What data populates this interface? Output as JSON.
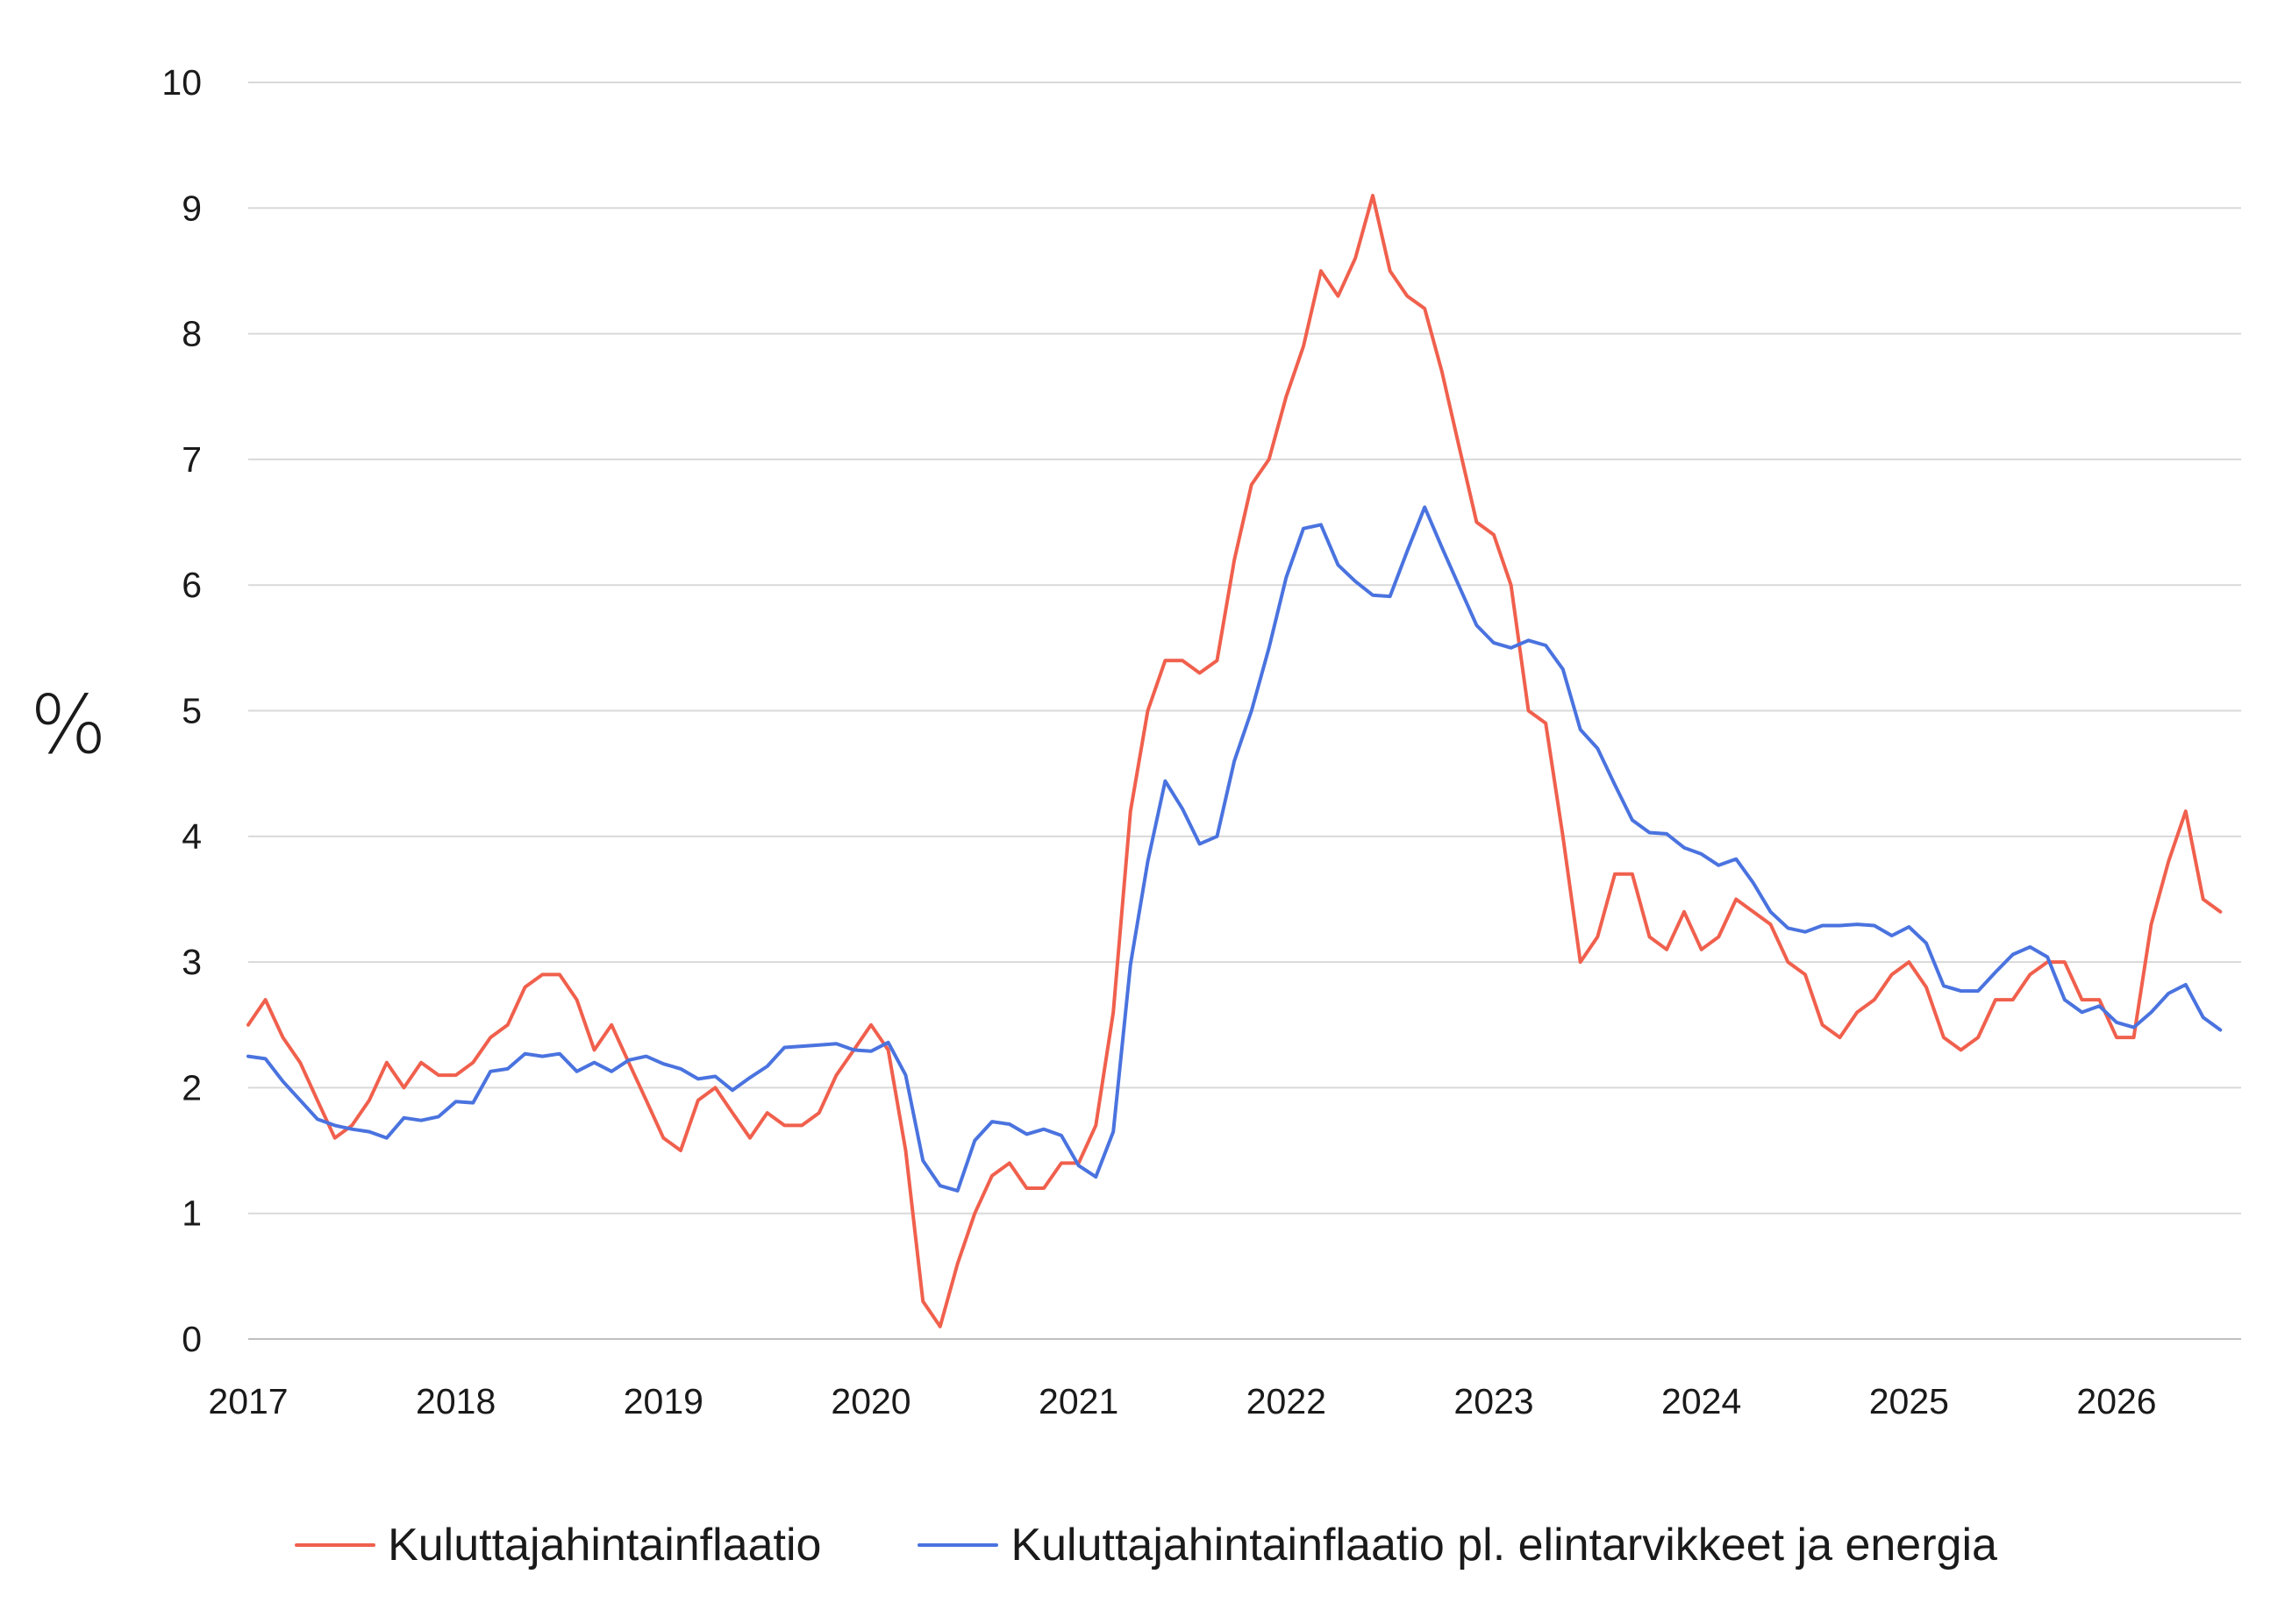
{
  "chart_data": {
    "type": "line",
    "title": "",
    "xlabel": "",
    "ylabel": "%",
    "ylim": [
      0,
      10
    ],
    "yticks": [
      "0",
      "1",
      "2",
      "3",
      "4",
      "5",
      "6",
      "7",
      "8",
      "9",
      "10"
    ],
    "xlim": [
      2017,
      2026.6
    ],
    "xticks": [
      "2017",
      "2018",
      "2019",
      "2020",
      "2021",
      "2022",
      "2023",
      "2024",
      "2025",
      "2026"
    ],
    "grid": "horizontal",
    "legend_position": "bottom",
    "series": [
      {
        "name": "Kuluttajahintainflaatio",
        "color": "#f0604d",
        "x": [
          2017.0,
          2017.083,
          2017.167,
          2017.25,
          2017.333,
          2017.417,
          2017.5,
          2017.583,
          2017.667,
          2017.75,
          2017.833,
          2017.917,
          2018.0,
          2018.083,
          2018.167,
          2018.25,
          2018.333,
          2018.417,
          2018.5,
          2018.583,
          2018.667,
          2018.75,
          2018.833,
          2018.917,
          2019.0,
          2019.083,
          2019.167,
          2019.25,
          2019.333,
          2019.417,
          2019.5,
          2019.583,
          2019.667,
          2019.75,
          2019.833,
          2019.917,
          2020.0,
          2020.083,
          2020.167,
          2020.25,
          2020.333,
          2020.417,
          2020.5,
          2020.583,
          2020.667,
          2020.75,
          2020.833,
          2020.917,
          2021.0,
          2021.083,
          2021.167,
          2021.25,
          2021.333,
          2021.417,
          2021.5,
          2021.583,
          2021.667,
          2021.75,
          2021.833,
          2021.917,
          2022.0,
          2022.083,
          2022.167,
          2022.25,
          2022.333,
          2022.417,
          2022.5,
          2022.583,
          2022.667,
          2022.75,
          2022.833,
          2022.917,
          2023.0,
          2023.083,
          2023.167,
          2023.25,
          2023.333,
          2023.417,
          2023.5,
          2023.583,
          2023.667,
          2023.75,
          2023.833,
          2023.917,
          2024.0,
          2024.083,
          2024.167,
          2024.25,
          2024.333,
          2024.417,
          2024.5,
          2024.583,
          2024.667,
          2024.75,
          2024.833,
          2024.917,
          2025.0,
          2025.083,
          2025.167,
          2025.25,
          2025.333,
          2025.417,
          2025.5,
          2025.583,
          2025.667,
          2025.75,
          2025.833,
          2025.917,
          2026.0,
          2026.083,
          2026.167,
          2026.25,
          2026.333,
          2026.417,
          2026.5
        ],
        "y": [
          2.5,
          2.7,
          2.4,
          2.2,
          1.9,
          1.6,
          1.7,
          1.9,
          2.2,
          2.0,
          2.2,
          2.1,
          2.1,
          2.2,
          2.4,
          2.5,
          2.8,
          2.9,
          2.9,
          2.7,
          2.3,
          2.5,
          2.2,
          1.9,
          1.6,
          1.5,
          1.9,
          2.0,
          1.8,
          1.6,
          1.8,
          1.7,
          1.7,
          1.8,
          2.1,
          2.3,
          2.5,
          2.3,
          1.5,
          0.3,
          0.1,
          0.6,
          1.0,
          1.3,
          1.4,
          1.2,
          1.2,
          1.4,
          1.4,
          1.7,
          2.6,
          4.2,
          5.0,
          5.4,
          5.4,
          5.3,
          5.4,
          6.2,
          6.8,
          7.0,
          7.5,
          7.9,
          8.5,
          8.3,
          8.6,
          9.1,
          8.5,
          8.3,
          8.2,
          7.7,
          7.1,
          6.5,
          6.4,
          6.0,
          5.0,
          4.9,
          4.0,
          3.0,
          3.2,
          3.7,
          3.7,
          3.2,
          3.1,
          3.4,
          3.1,
          3.2,
          3.5,
          3.4,
          3.3,
          3.0,
          2.9,
          2.5,
          2.4,
          2.6,
          2.7,
          2.9,
          3.0,
          2.8,
          2.4,
          2.3,
          2.4,
          2.7,
          2.7,
          2.9,
          3.0,
          3.0,
          2.7,
          2.7,
          2.4,
          2.4,
          3.3,
          3.8,
          4.2,
          3.5,
          3.4
        ]
      },
      {
        "name": "Kuluttajahintainflaatio pl. elintarvikkeet ja energia",
        "color": "#4a73df",
        "x": [
          2017.0,
          2017.083,
          2017.167,
          2017.25,
          2017.333,
          2017.417,
          2017.5,
          2017.583,
          2017.667,
          2017.75,
          2017.833,
          2017.917,
          2018.0,
          2018.083,
          2018.167,
          2018.25,
          2018.333,
          2018.417,
          2018.5,
          2018.583,
          2018.667,
          2018.75,
          2018.833,
          2018.917,
          2019.0,
          2019.083,
          2019.167,
          2019.25,
          2019.333,
          2019.417,
          2019.5,
          2019.583,
          2019.667,
          2019.75,
          2019.833,
          2019.917,
          2020.0,
          2020.083,
          2020.167,
          2020.25,
          2020.333,
          2020.417,
          2020.5,
          2020.583,
          2020.667,
          2020.75,
          2020.833,
          2020.917,
          2021.0,
          2021.083,
          2021.167,
          2021.25,
          2021.333,
          2021.417,
          2021.5,
          2021.583,
          2021.667,
          2021.75,
          2021.833,
          2021.917,
          2022.0,
          2022.083,
          2022.167,
          2022.25,
          2022.333,
          2022.417,
          2022.5,
          2022.583,
          2022.667,
          2022.75,
          2022.833,
          2022.917,
          2023.0,
          2023.083,
          2023.167,
          2023.25,
          2023.333,
          2023.417,
          2023.5,
          2023.583,
          2023.667,
          2023.75,
          2023.833,
          2023.917,
          2024.0,
          2024.083,
          2024.167,
          2024.25,
          2024.333,
          2024.417,
          2024.5,
          2024.583,
          2024.667,
          2024.75,
          2024.833,
          2024.917,
          2025.0,
          2025.083,
          2025.167,
          2025.25,
          2025.333,
          2025.417,
          2025.5,
          2025.583,
          2025.667,
          2025.75,
          2025.833,
          2025.917,
          2026.0,
          2026.083,
          2026.167,
          2026.25,
          2026.333,
          2026.417,
          2026.5
        ],
        "y": [
          2.25,
          2.23,
          2.05,
          1.9,
          1.75,
          1.7,
          1.67,
          1.65,
          1.6,
          1.76,
          1.74,
          1.77,
          1.89,
          1.88,
          2.13,
          2.15,
          2.27,
          2.25,
          2.27,
          2.13,
          2.2,
          2.13,
          2.22,
          2.25,
          2.19,
          2.15,
          2.07,
          2.09,
          1.98,
          2.08,
          2.17,
          2.32,
          2.33,
          2.34,
          2.35,
          2.3,
          2.29,
          2.36,
          2.1,
          1.42,
          1.22,
          1.18,
          1.58,
          1.73,
          1.71,
          1.63,
          1.67,
          1.62,
          1.38,
          1.29,
          1.65,
          2.98,
          3.8,
          4.44,
          4.22,
          3.94,
          4.0,
          4.6,
          5.0,
          5.5,
          6.06,
          6.45,
          6.48,
          6.16,
          6.03,
          5.92,
          5.91,
          6.27,
          6.62,
          6.3,
          5.99,
          5.68,
          5.54,
          5.5,
          5.56,
          5.52,
          5.33,
          4.85,
          4.7,
          4.41,
          4.13,
          4.03,
          4.02,
          3.91,
          3.86,
          3.77,
          3.82,
          3.63,
          3.4,
          3.27,
          3.24,
          3.29,
          3.29,
          3.3,
          3.29,
          3.21,
          3.28,
          3.15,
          2.81,
          2.77,
          2.77,
          2.92,
          3.06,
          3.12,
          3.04,
          2.7,
          2.6,
          2.65,
          2.52,
          2.48,
          2.6,
          2.75,
          2.82,
          2.56,
          2.46
        ]
      }
    ]
  }
}
